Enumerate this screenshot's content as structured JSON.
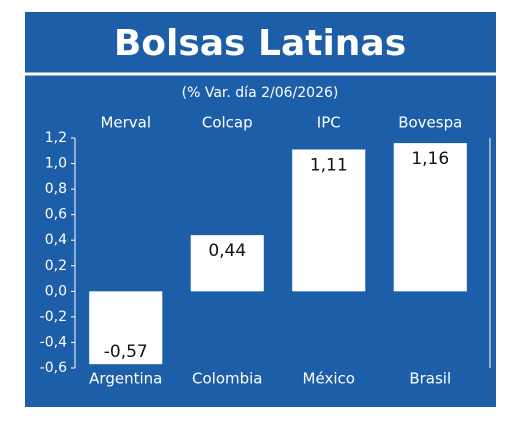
{
  "chart_data": {
    "type": "bar",
    "title": "Bolsas Latinas",
    "subtitle": "(% Var. día 2/06/2026)",
    "index_names": [
      "Merval",
      "Colcap",
      "IPC",
      "Bovespa"
    ],
    "categories": [
      "Argentina",
      "Colombia",
      "México",
      "Brasil"
    ],
    "values": [
      -0.57,
      0.44,
      1.11,
      1.16
    ],
    "value_labels": [
      "-0,57",
      "0,44",
      "1,11",
      "1,16"
    ],
    "color": "#ffffff",
    "ylim": [
      -0.6,
      1.2
    ],
    "yticks": [
      {
        "value": -0.6,
        "label": "-0,6"
      },
      {
        "value": -0.4,
        "label": "-0,4"
      },
      {
        "value": -0.2,
        "label": "-0,2"
      },
      {
        "value": 0,
        "label": "0,0"
      },
      {
        "value": 0.2,
        "label": "0,2"
      },
      {
        "value": 0.4,
        "label": "0,4"
      },
      {
        "value": 0.6,
        "label": "0,6"
      },
      {
        "value": 0.8,
        "label": "0,8"
      },
      {
        "value": 1.0,
        "label": "1,0"
      },
      {
        "value": 1.2,
        "label": "1,2"
      }
    ],
    "grid": false
  }
}
